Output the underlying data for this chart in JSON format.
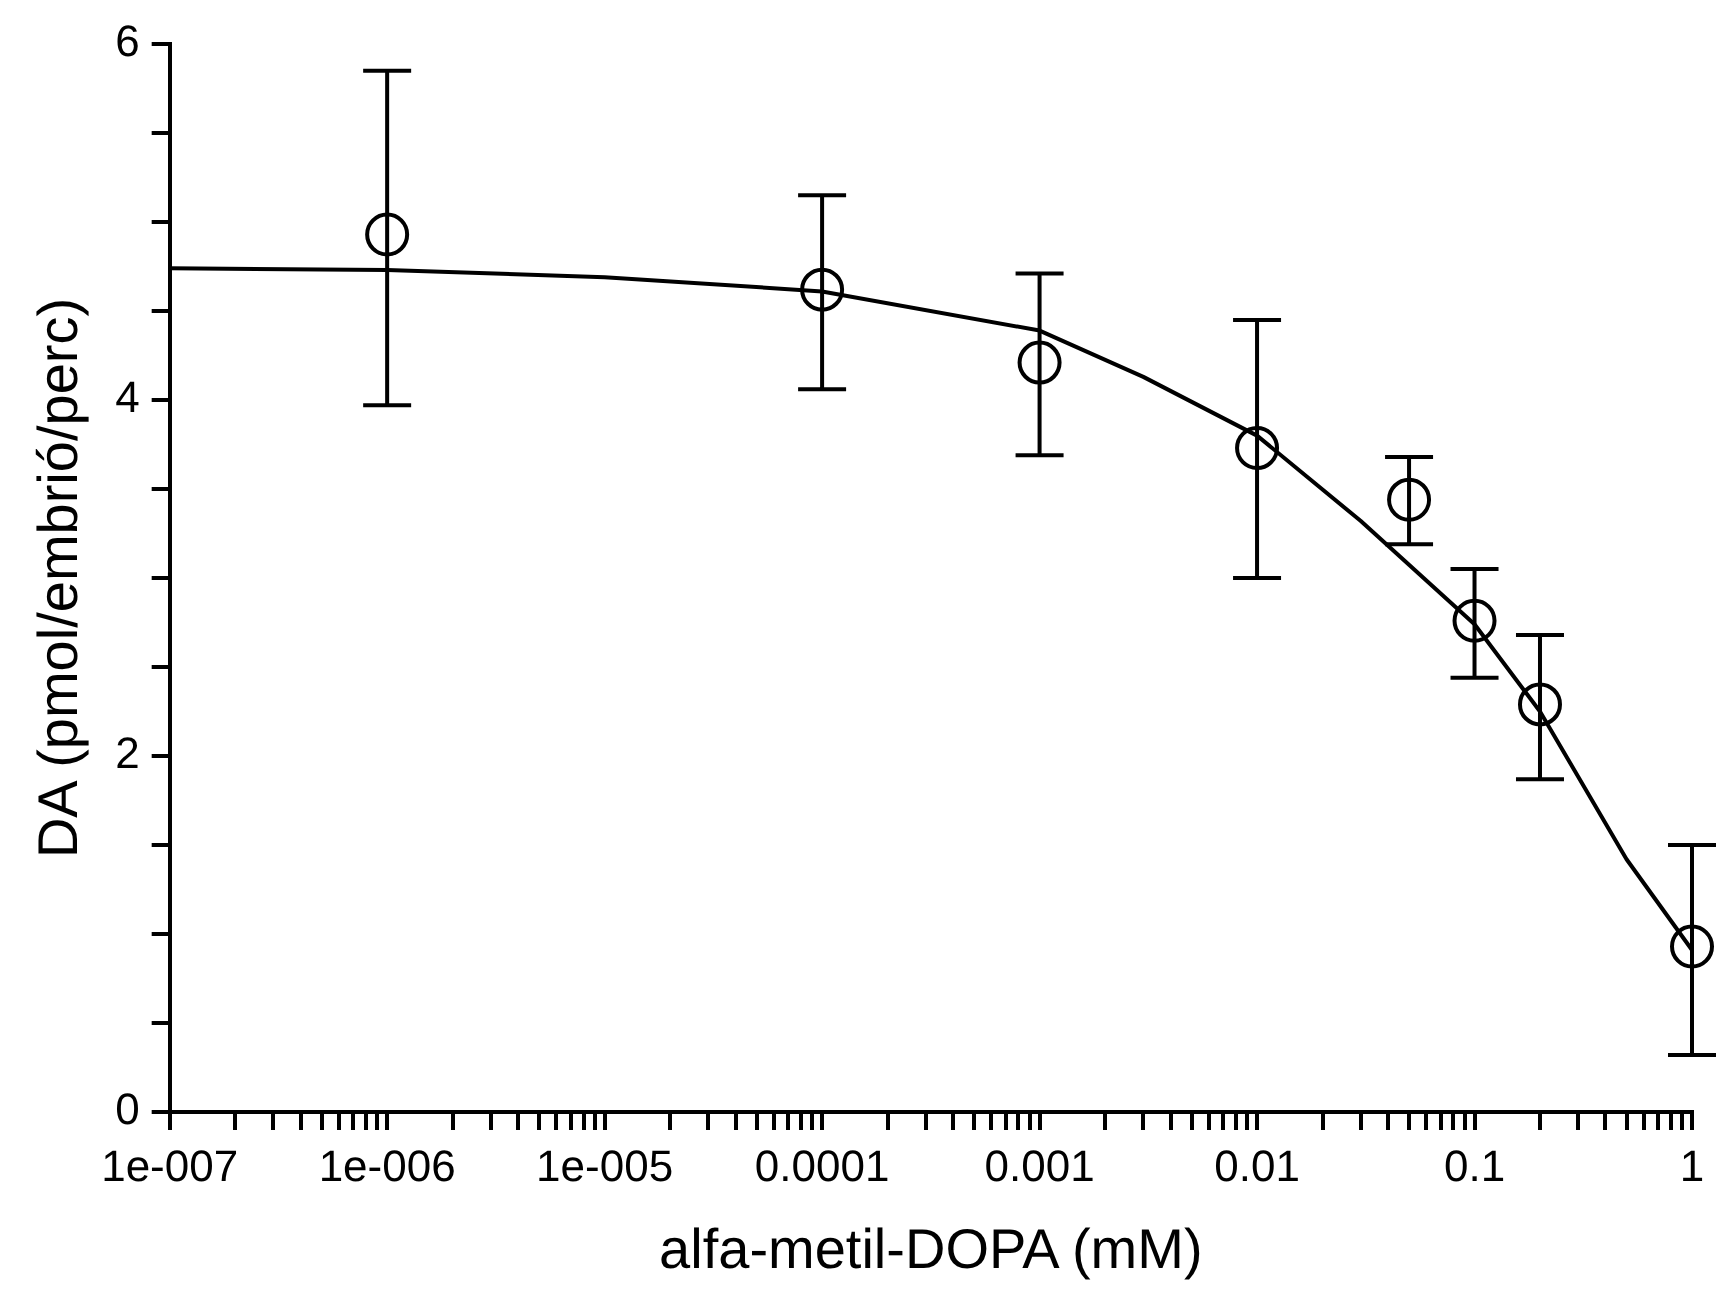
{
  "chart_data": {
    "type": "scatter",
    "xlabel": "alfa-metil-DOPA (mM)",
    "ylabel": "DA (pmol/embrió/perc)",
    "log": "x",
    "grid": false,
    "legend": false,
    "xlim": [
      1e-07,
      1
    ],
    "ylim": [
      0,
      6
    ],
    "xticks": [
      {
        "value": 1e-07,
        "label": "1e-007"
      },
      {
        "value": 2e-07,
        "label": null
      },
      {
        "value": 3e-07,
        "label": null
      },
      {
        "value": 4e-07,
        "label": null
      },
      {
        "value": 5e-07,
        "label": null
      },
      {
        "value": 6e-07,
        "label": null
      },
      {
        "value": 7e-07,
        "label": null
      },
      {
        "value": 8e-07,
        "label": null
      },
      {
        "value": 9e-07,
        "label": null
      },
      {
        "value": 1e-06,
        "label": "1e-006"
      },
      {
        "value": 2e-06,
        "label": null
      },
      {
        "value": 3e-06,
        "label": null
      },
      {
        "value": 4e-06,
        "label": null
      },
      {
        "value": 5e-06,
        "label": null
      },
      {
        "value": 6e-06,
        "label": null
      },
      {
        "value": 7e-06,
        "label": null
      },
      {
        "value": 8e-06,
        "label": null
      },
      {
        "value": 9e-06,
        "label": null
      },
      {
        "value": 1e-05,
        "label": "1e-005"
      },
      {
        "value": 2e-05,
        "label": null
      },
      {
        "value": 3e-05,
        "label": null
      },
      {
        "value": 4e-05,
        "label": null
      },
      {
        "value": 5e-05,
        "label": null
      },
      {
        "value": 6e-05,
        "label": null
      },
      {
        "value": 7e-05,
        "label": null
      },
      {
        "value": 8e-05,
        "label": null
      },
      {
        "value": 9e-05,
        "label": null
      },
      {
        "value": 0.0001,
        "label": "0.0001"
      },
      {
        "value": 0.0002,
        "label": null
      },
      {
        "value": 0.0003,
        "label": null
      },
      {
        "value": 0.0004,
        "label": null
      },
      {
        "value": 0.0005,
        "label": null
      },
      {
        "value": 0.0006,
        "label": null
      },
      {
        "value": 0.0007,
        "label": null
      },
      {
        "value": 0.0008,
        "label": null
      },
      {
        "value": 0.0009,
        "label": null
      },
      0.001,
      {
        "value": 0.002,
        "label": null
      },
      {
        "value": 0.003,
        "label": null
      },
      {
        "value": 0.004,
        "label": null
      },
      {
        "value": 0.005,
        "label": null
      },
      {
        "value": 0.006,
        "label": null
      },
      {
        "value": 0.007,
        "label": null
      },
      {
        "value": 0.008,
        "label": null
      },
      {
        "value": 0.009,
        "label": null
      },
      0.01,
      {
        "value": 0.02,
        "label": null
      },
      {
        "value": 0.03,
        "label": null
      },
      {
        "value": 0.04,
        "label": null
      },
      {
        "value": 0.05,
        "label": null
      },
      {
        "value": 0.06,
        "label": null
      },
      {
        "value": 0.07,
        "label": null
      },
      {
        "value": 0.08,
        "label": null
      },
      {
        "value": 0.09,
        "label": null
      },
      0.1,
      {
        "value": 0.2,
        "label": null
      },
      {
        "value": 0.3,
        "label": null
      },
      {
        "value": 0.4,
        "label": null
      },
      {
        "value": 0.5,
        "label": null
      },
      {
        "value": 0.6,
        "label": null
      },
      {
        "value": 0.7,
        "label": null
      },
      {
        "value": 0.8,
        "label": null
      },
      {
        "value": 0.9,
        "label": null
      },
      1
    ],
    "yticks": [
      0,
      {
        "value": 0.5,
        "label": null
      },
      {
        "value": 1,
        "label": null
      },
      {
        "value": 1.5,
        "label": null
      },
      2,
      {
        "value": 2.5,
        "label": null
      },
      {
        "value": 3,
        "label": null
      },
      {
        "value": 3.5,
        "label": null
      },
      4,
      {
        "value": 4.5,
        "label": null
      },
      {
        "value": 5,
        "label": null
      },
      {
        "value": 5.5,
        "label": null
      },
      6
    ],
    "series": [
      {
        "color": "#000000",
        "marker": "circle",
        "x": [
          1e-06,
          0.0001,
          0.001,
          0.01,
          0.05,
          0.1,
          0.2,
          1
        ],
        "values": [
          4.93,
          4.62,
          4.21,
          3.73,
          3.44,
          2.76,
          2.29,
          0.93
        ],
        "errors": [
          [
            3.97,
            5.85
          ],
          [
            4.06,
            5.15
          ],
          [
            3.69,
            4.71
          ],
          [
            3.0,
            4.45
          ],
          [
            3.19,
            3.68
          ],
          [
            2.44,
            3.05
          ],
          [
            1.87,
            2.68
          ],
          [
            0.32,
            1.5
          ]
        ]
      },
      {
        "type": "line",
        "color": "#000000",
        "marker": "none",
        "line_style": "solid",
        "x": [
          1e-07,
          1e-06,
          1e-05,
          0.0001,
          0.001,
          0.003,
          0.01,
          0.03,
          0.1,
          0.2,
          0.5,
          1
        ],
        "values": [
          4.74,
          4.73,
          4.69,
          4.61,
          4.39,
          4.13,
          3.8,
          3.32,
          2.74,
          2.25,
          1.42,
          0.91
        ]
      }
    ]
  }
}
